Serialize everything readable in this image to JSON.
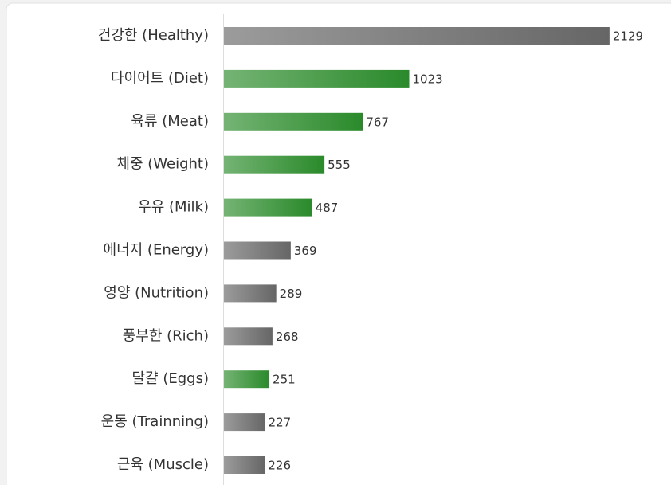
{
  "chart_data": {
    "type": "barh",
    "categories": [
      "건강한 (Healthy)",
      "다이어트 (Diet)",
      "육류 (Meat)",
      "체중 (Weight)",
      "우유 (Milk)",
      "에너지 (Energy)",
      "영양 (Nutrition)",
      "풍부한 (Rich)",
      "달걀 (Eggs)",
      "운동 (Trainning)",
      "근육 (Muscle)"
    ],
    "values": [
      2129,
      1023,
      767,
      555,
      487,
      369,
      289,
      268,
      251,
      227,
      226
    ],
    "colors": [
      "#666666",
      "#2a8a2a",
      "#2a8a2a",
      "#2a8a2a",
      "#2a8a2a",
      "#666666",
      "#666666",
      "#666666",
      "#2a8a2a",
      "#666666",
      "#666666"
    ],
    "xlim": [
      0,
      2200
    ]
  }
}
